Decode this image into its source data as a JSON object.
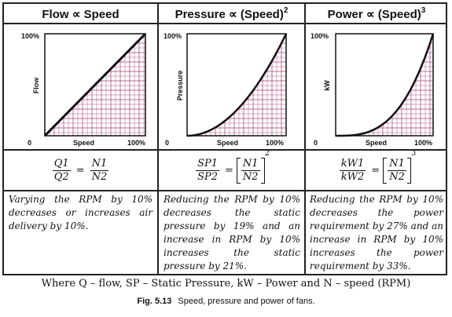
{
  "columns": [
    {
      "header": "Flow ∝ Speed",
      "header_sup": "",
      "y_axis_label": "Flow",
      "x_axis_label": "Speed",
      "tick_top": "100%",
      "tick_origin": "0",
      "tick_right": "100%",
      "equation": {
        "lhs_num": "Q1",
        "lhs_den": "Q2",
        "rhs_num": "N1",
        "rhs_den": "N2",
        "exponent": ""
      },
      "description": "Varying the RPM by 10% decreases or increases air delivery by 10%."
    },
    {
      "header": "Pressure ∝ (Speed)",
      "header_sup": "2",
      "y_axis_label": "Pressure",
      "x_axis_label": "Speed",
      "tick_top": "100%",
      "tick_origin": "0",
      "tick_right": "100%",
      "equation": {
        "lhs_num": "SP1",
        "lhs_den": "SP2",
        "rhs_num": "N1",
        "rhs_den": "N2",
        "exponent": "2"
      },
      "description": "Reducing the RPM by 10% decreases the static pressure by 19% and an increase in RPM by 10% increases the static pressure by 21%."
    },
    {
      "header": "Power ∝ (Speed)",
      "header_sup": "3",
      "y_axis_label": "kW",
      "x_axis_label": "Speed",
      "tick_top": "100%",
      "tick_origin": "0",
      "tick_right": "100%",
      "equation": {
        "lhs_num": "kW1",
        "lhs_den": "kW2",
        "rhs_num": "N1",
        "rhs_den": "N2",
        "exponent": "3"
      },
      "description": "Reducing the RPM by 10% decreases the power requirement by 27% and an increase in RPM by 10% increases the power requirement by 33%."
    }
  ],
  "footer": "Where Q – flow, SP – Static Pressure, kW – Power and N – speed (RPM)",
  "caption_label": "Fig. 5.13",
  "caption_text": "Speed, pressure and power of fans.",
  "curve_exponents": [
    1,
    2,
    3
  ],
  "colors": {
    "grid": "#b05a8a",
    "curve": "#111111",
    "border": "#222222"
  }
}
